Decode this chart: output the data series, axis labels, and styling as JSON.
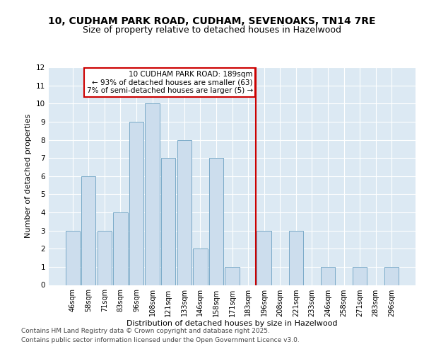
{
  "title1": "10, CUDHAM PARK ROAD, CUDHAM, SEVENOAKS, TN14 7RE",
  "title2": "Size of property relative to detached houses in Hazelwood",
  "xlabel": "Distribution of detached houses by size in Hazelwood",
  "ylabel": "Number of detached properties",
  "categories": [
    "46sqm",
    "58sqm",
    "71sqm",
    "83sqm",
    "96sqm",
    "108sqm",
    "121sqm",
    "133sqm",
    "146sqm",
    "158sqm",
    "171sqm",
    "183sqm",
    "196sqm",
    "208sqm",
    "221sqm",
    "233sqm",
    "246sqm",
    "258sqm",
    "271sqm",
    "283sqm",
    "296sqm"
  ],
  "values": [
    3,
    6,
    3,
    4,
    9,
    10,
    7,
    8,
    2,
    7,
    1,
    0,
    3,
    0,
    3,
    0,
    1,
    0,
    1,
    0,
    1
  ],
  "bar_color": "#ccdded",
  "bar_edge_color": "#7aaac8",
  "annotation_title": "10 CUDHAM PARK ROAD: 189sqm",
  "annotation_line1": "← 93% of detached houses are smaller (63)",
  "annotation_line2": "7% of semi-detached houses are larger (5) →",
  "annotation_box_color": "#ffffff",
  "annotation_box_edge": "#cc0000",
  "vline_color": "#cc0000",
  "vline_index": 11,
  "ylim": [
    0,
    12
  ],
  "yticks": [
    0,
    1,
    2,
    3,
    4,
    5,
    6,
    7,
    8,
    9,
    10,
    11,
    12
  ],
  "plot_bg": "#dce9f3",
  "footer1": "Contains HM Land Registry data © Crown copyright and database right 2025.",
  "footer2": "Contains public sector information licensed under the Open Government Licence v3.0.",
  "title_fontsize": 10,
  "subtitle_fontsize": 9,
  "axis_label_fontsize": 8,
  "tick_fontsize": 7,
  "footer_fontsize": 6.5,
  "annotation_fontsize": 7.5
}
